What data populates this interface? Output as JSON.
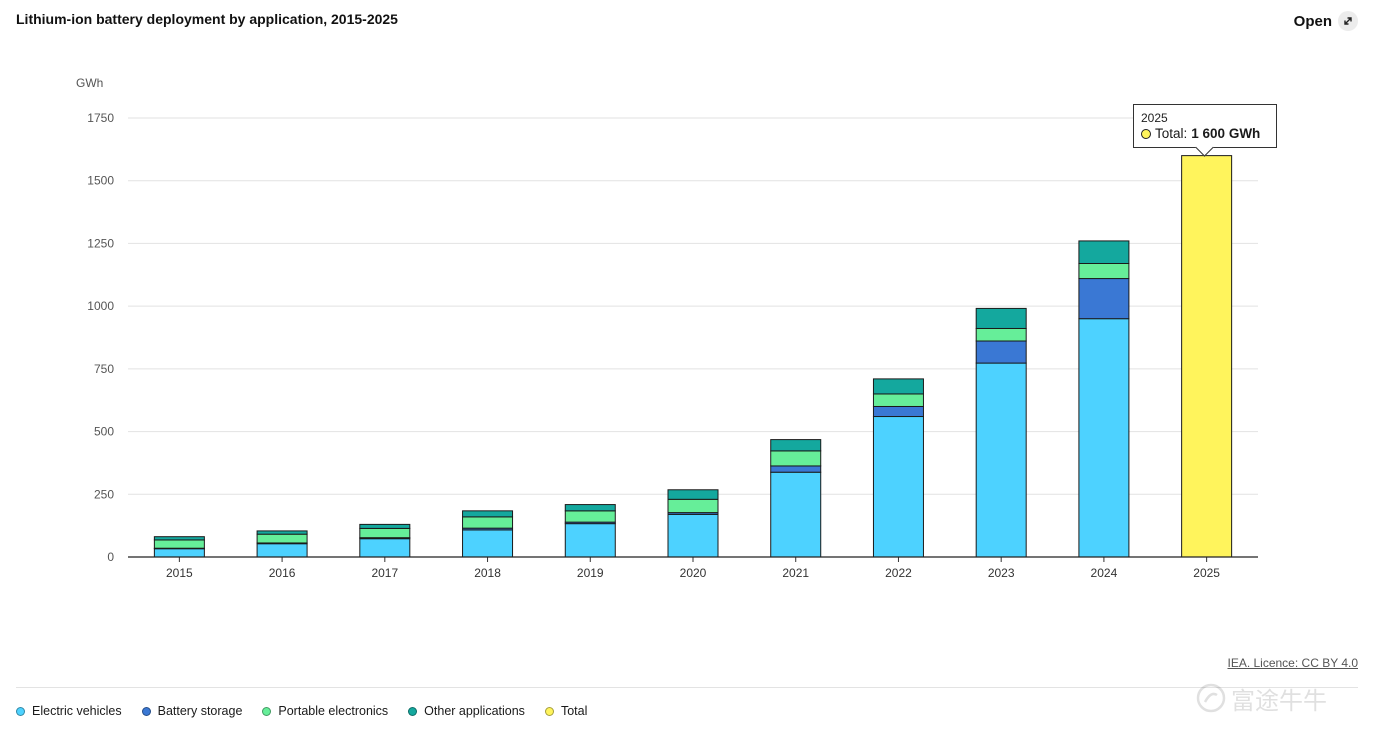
{
  "header": {
    "title": "Lithium-ion battery deployment by application, 2015-2025",
    "open_label": "Open",
    "open_icon": "expand-icon"
  },
  "chart_data": {
    "type": "bar",
    "stacked": true,
    "ylabel": "GWh",
    "ylim": [
      0,
      1750
    ],
    "yticks": [
      0,
      250,
      500,
      750,
      1000,
      1250,
      1500,
      1750
    ],
    "ytick_labels": [
      "0",
      "250",
      "500",
      "750",
      "1000",
      "1250",
      "1500",
      "1750"
    ],
    "grid": true,
    "categories": [
      "2015",
      "2016",
      "2017",
      "2018",
      "2019",
      "2020",
      "2021",
      "2022",
      "2023",
      "2024",
      "2025"
    ],
    "series": [
      {
        "name": "Electric vehicles",
        "color": "#4dd2ff",
        "values": [
          33,
          53,
          73,
          108,
          133,
          170,
          338,
          560,
          773,
          950,
          null
        ]
      },
      {
        "name": "Battery storage",
        "color": "#3a78d4",
        "values": [
          2,
          3,
          4,
          7,
          6,
          7,
          25,
          40,
          88,
          160,
          null
        ]
      },
      {
        "name": "Portable electronics",
        "color": "#66ee99",
        "values": [
          33,
          35,
          37,
          45,
          45,
          53,
          60,
          50,
          50,
          60,
          null
        ]
      },
      {
        "name": "Other applications",
        "color": "#14a89e",
        "values": [
          13,
          13,
          16,
          24,
          25,
          38,
          45,
          60,
          80,
          90,
          null
        ]
      },
      {
        "name": "Total",
        "color": "#fff45c",
        "values": [
          null,
          null,
          null,
          null,
          null,
          null,
          null,
          null,
          null,
          null,
          1600
        ]
      }
    ],
    "legend_position": "bottom-left",
    "tooltip": {
      "year": "2025",
      "label": "Total: ",
      "value": "1 600 GWh"
    }
  },
  "legend": {
    "items": [
      {
        "label": "Electric vehicles",
        "color": "#4dd2ff"
      },
      {
        "label": "Battery storage",
        "color": "#3a78d4"
      },
      {
        "label": "Portable electronics",
        "color": "#66ee99"
      },
      {
        "label": "Other applications",
        "color": "#14a89e"
      },
      {
        "label": "Total",
        "color": "#fff45c"
      }
    ]
  },
  "footer": {
    "licence": "IEA. Licence: CC BY 4.0"
  },
  "watermark": {
    "text": "富途牛牛",
    "icon": "futu-logo-icon"
  }
}
